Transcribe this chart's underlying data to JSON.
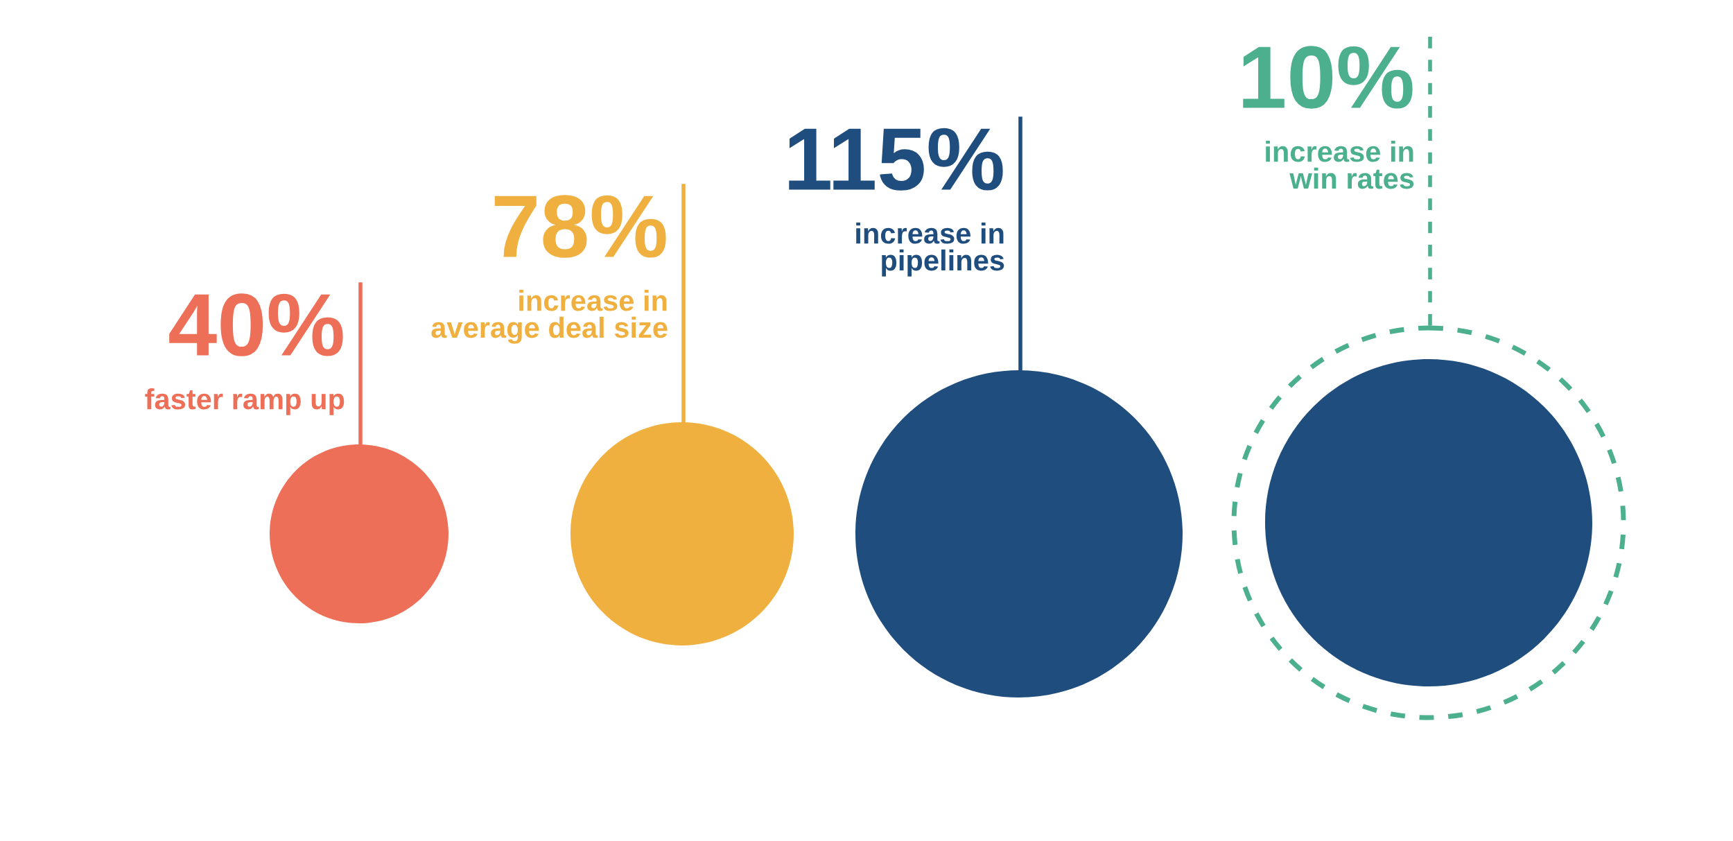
{
  "chart_data": {
    "type": "other",
    "categories": [
      "faster ramp up",
      "increase in\naverage deal size",
      "increase in\npipelines",
      "increase in\nwin rates"
    ],
    "values": [
      40,
      78,
      115,
      10
    ],
    "value_labels": [
      "40%",
      "78%",
      "115%",
      "10%"
    ],
    "colors": [
      "#ee6f57",
      "#f0b03f",
      "#1f4e7e",
      "#4caf8e"
    ]
  }
}
